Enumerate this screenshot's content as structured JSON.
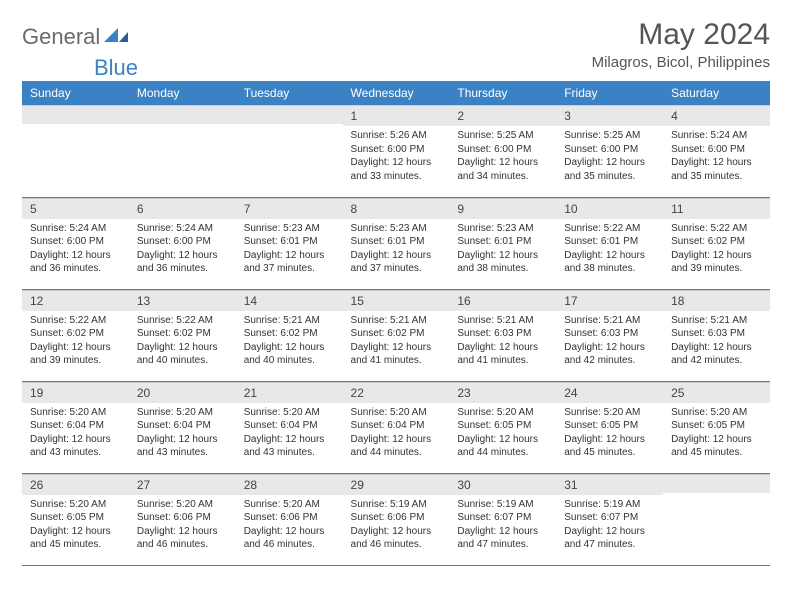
{
  "brand": {
    "part1": "General",
    "part2": "Blue"
  },
  "title": "May 2024",
  "location": "Milagros, Bicol, Philippines",
  "colors": {
    "header_bg": "#3b82c4",
    "header_fg": "#ffffff",
    "daybar_bg": "#e8e8e8",
    "border": "#3b82c4",
    "brand_gray": "#6b6b6b",
    "brand_blue": "#3b82c4"
  },
  "day_headers": [
    "Sunday",
    "Monday",
    "Tuesday",
    "Wednesday",
    "Thursday",
    "Friday",
    "Saturday"
  ],
  "weeks": [
    [
      null,
      null,
      null,
      {
        "n": "1",
        "sr": "5:26 AM",
        "ss": "6:00 PM",
        "dl": "12 hours and 33 minutes."
      },
      {
        "n": "2",
        "sr": "5:25 AM",
        "ss": "6:00 PM",
        "dl": "12 hours and 34 minutes."
      },
      {
        "n": "3",
        "sr": "5:25 AM",
        "ss": "6:00 PM",
        "dl": "12 hours and 35 minutes."
      },
      {
        "n": "4",
        "sr": "5:24 AM",
        "ss": "6:00 PM",
        "dl": "12 hours and 35 minutes."
      }
    ],
    [
      {
        "n": "5",
        "sr": "5:24 AM",
        "ss": "6:00 PM",
        "dl": "12 hours and 36 minutes."
      },
      {
        "n": "6",
        "sr": "5:24 AM",
        "ss": "6:00 PM",
        "dl": "12 hours and 36 minutes."
      },
      {
        "n": "7",
        "sr": "5:23 AM",
        "ss": "6:01 PM",
        "dl": "12 hours and 37 minutes."
      },
      {
        "n": "8",
        "sr": "5:23 AM",
        "ss": "6:01 PM",
        "dl": "12 hours and 37 minutes."
      },
      {
        "n": "9",
        "sr": "5:23 AM",
        "ss": "6:01 PM",
        "dl": "12 hours and 38 minutes."
      },
      {
        "n": "10",
        "sr": "5:22 AM",
        "ss": "6:01 PM",
        "dl": "12 hours and 38 minutes."
      },
      {
        "n": "11",
        "sr": "5:22 AM",
        "ss": "6:02 PM",
        "dl": "12 hours and 39 minutes."
      }
    ],
    [
      {
        "n": "12",
        "sr": "5:22 AM",
        "ss": "6:02 PM",
        "dl": "12 hours and 39 minutes."
      },
      {
        "n": "13",
        "sr": "5:22 AM",
        "ss": "6:02 PM",
        "dl": "12 hours and 40 minutes."
      },
      {
        "n": "14",
        "sr": "5:21 AM",
        "ss": "6:02 PM",
        "dl": "12 hours and 40 minutes."
      },
      {
        "n": "15",
        "sr": "5:21 AM",
        "ss": "6:02 PM",
        "dl": "12 hours and 41 minutes."
      },
      {
        "n": "16",
        "sr": "5:21 AM",
        "ss": "6:03 PM",
        "dl": "12 hours and 41 minutes."
      },
      {
        "n": "17",
        "sr": "5:21 AM",
        "ss": "6:03 PM",
        "dl": "12 hours and 42 minutes."
      },
      {
        "n": "18",
        "sr": "5:21 AM",
        "ss": "6:03 PM",
        "dl": "12 hours and 42 minutes."
      }
    ],
    [
      {
        "n": "19",
        "sr": "5:20 AM",
        "ss": "6:04 PM",
        "dl": "12 hours and 43 minutes."
      },
      {
        "n": "20",
        "sr": "5:20 AM",
        "ss": "6:04 PM",
        "dl": "12 hours and 43 minutes."
      },
      {
        "n": "21",
        "sr": "5:20 AM",
        "ss": "6:04 PM",
        "dl": "12 hours and 43 minutes."
      },
      {
        "n": "22",
        "sr": "5:20 AM",
        "ss": "6:04 PM",
        "dl": "12 hours and 44 minutes."
      },
      {
        "n": "23",
        "sr": "5:20 AM",
        "ss": "6:05 PM",
        "dl": "12 hours and 44 minutes."
      },
      {
        "n": "24",
        "sr": "5:20 AM",
        "ss": "6:05 PM",
        "dl": "12 hours and 45 minutes."
      },
      {
        "n": "25",
        "sr": "5:20 AM",
        "ss": "6:05 PM",
        "dl": "12 hours and 45 minutes."
      }
    ],
    [
      {
        "n": "26",
        "sr": "5:20 AM",
        "ss": "6:05 PM",
        "dl": "12 hours and 45 minutes."
      },
      {
        "n": "27",
        "sr": "5:20 AM",
        "ss": "6:06 PM",
        "dl": "12 hours and 46 minutes."
      },
      {
        "n": "28",
        "sr": "5:20 AM",
        "ss": "6:06 PM",
        "dl": "12 hours and 46 minutes."
      },
      {
        "n": "29",
        "sr": "5:19 AM",
        "ss": "6:06 PM",
        "dl": "12 hours and 46 minutes."
      },
      {
        "n": "30",
        "sr": "5:19 AM",
        "ss": "6:07 PM",
        "dl": "12 hours and 47 minutes."
      },
      {
        "n": "31",
        "sr": "5:19 AM",
        "ss": "6:07 PM",
        "dl": "12 hours and 47 minutes."
      },
      null
    ]
  ],
  "labels": {
    "sunrise": "Sunrise:",
    "sunset": "Sunset:",
    "daylight": "Daylight:"
  }
}
